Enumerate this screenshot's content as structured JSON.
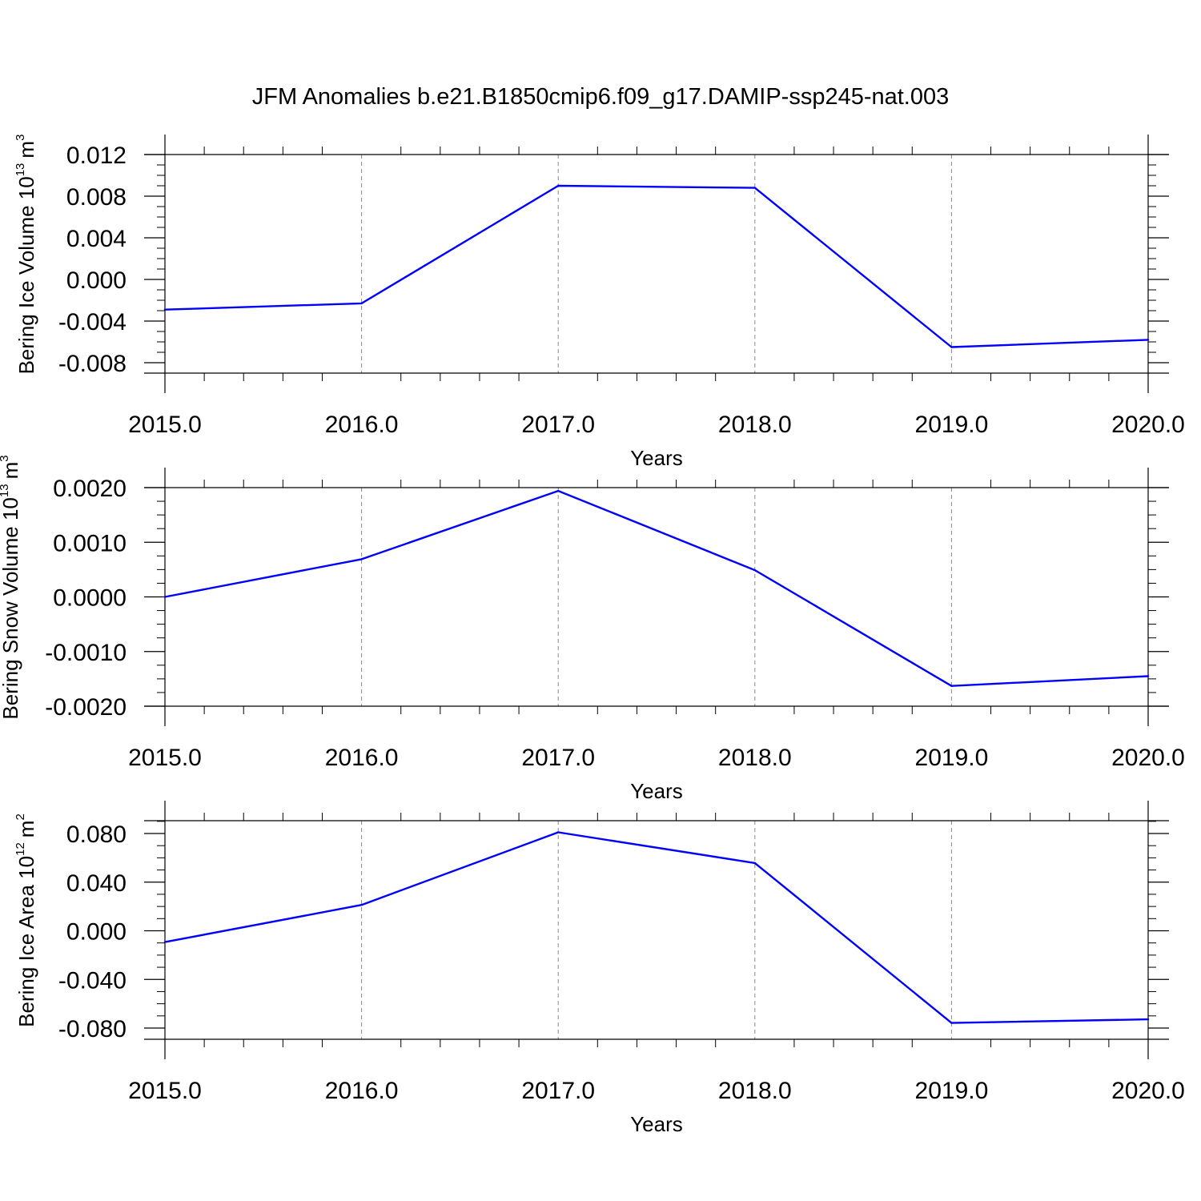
{
  "figure": {
    "title": "JFM Anomalies b.e21.B1850cmip6.f09_g17.DAMIP-ssp245-nat.003"
  },
  "chart_data": [
    {
      "type": "line",
      "xlabel": "Years",
      "ylabel": "Bering Ice Volume 10",
      "ylabel_exp": "13",
      "ylabel_unit": "m",
      "ylabel_unit_exp": "3",
      "xlim": [
        2015,
        2020
      ],
      "ylim": [
        -0.009,
        0.012
      ],
      "x_ticks": [
        2015,
        2016,
        2017,
        2018,
        2019,
        2020
      ],
      "x_tick_labels": [
        "2015.0",
        "2016.0",
        "2017.0",
        "2018.0",
        "2019.0",
        "2020.0"
      ],
      "y_ticks": [
        -0.008,
        -0.004,
        0.0,
        0.004,
        0.008,
        0.012
      ],
      "y_tick_labels": [
        "-0.008",
        "-0.004",
        "0.000",
        "0.004",
        "0.008",
        "0.012"
      ],
      "grid": "vertical dashed at major x ticks",
      "line_color": "#0000ff",
      "x": [
        2015,
        2016,
        2017,
        2018,
        2019,
        2020
      ],
      "values": [
        -0.0029,
        -0.0023,
        0.009,
        0.0088,
        -0.0065,
        -0.0058
      ]
    },
    {
      "type": "line",
      "xlabel": "Years",
      "ylabel": "Bering Snow Volume 10",
      "ylabel_exp": "13",
      "ylabel_unit": "m",
      "ylabel_unit_exp": "3",
      "xlim": [
        2015,
        2020
      ],
      "ylim": [
        -0.002,
        0.002
      ],
      "x_ticks": [
        2015,
        2016,
        2017,
        2018,
        2019,
        2020
      ],
      "x_tick_labels": [
        "2015.0",
        "2016.0",
        "2017.0",
        "2018.0",
        "2019.0",
        "2020.0"
      ],
      "y_ticks": [
        -0.002,
        -0.001,
        0.0,
        0.001,
        0.002
      ],
      "y_tick_labels": [
        "-0.0020",
        "-0.0010",
        "0.0000",
        "0.0010",
        "0.0020"
      ],
      "grid": "vertical dashed at major x ticks",
      "line_color": "#0000ff",
      "x": [
        2015,
        2016,
        2017,
        2018,
        2019,
        2020
      ],
      "values": [
        0.0,
        0.00069,
        0.00194,
        0.00049,
        -0.00163,
        -0.00145
      ]
    },
    {
      "type": "line",
      "xlabel": "Years",
      "ylabel": "Bering Ice Area 10",
      "ylabel_exp": "12",
      "ylabel_unit": "m",
      "ylabel_unit_exp": "2",
      "xlim": [
        2015,
        2020
      ],
      "ylim": [
        -0.09,
        0.09
      ],
      "x_ticks": [
        2015,
        2016,
        2017,
        2018,
        2019,
        2020
      ],
      "x_tick_labels": [
        "2015.0",
        "2016.0",
        "2017.0",
        "2018.0",
        "2019.0",
        "2020.0"
      ],
      "y_ticks": [
        -0.08,
        -0.04,
        0.0,
        0.04,
        0.08
      ],
      "y_tick_labels": [
        "-0.080",
        "-0.040",
        "0.000",
        "0.040",
        "0.080"
      ],
      "grid": "vertical dashed at major x ticks",
      "line_color": "#0000ff",
      "x": [
        2015,
        2016,
        2017,
        2018,
        2019,
        2020
      ],
      "values": [
        -0.0093,
        0.0213,
        0.081,
        0.0557,
        -0.0758,
        -0.0728
      ]
    }
  ]
}
